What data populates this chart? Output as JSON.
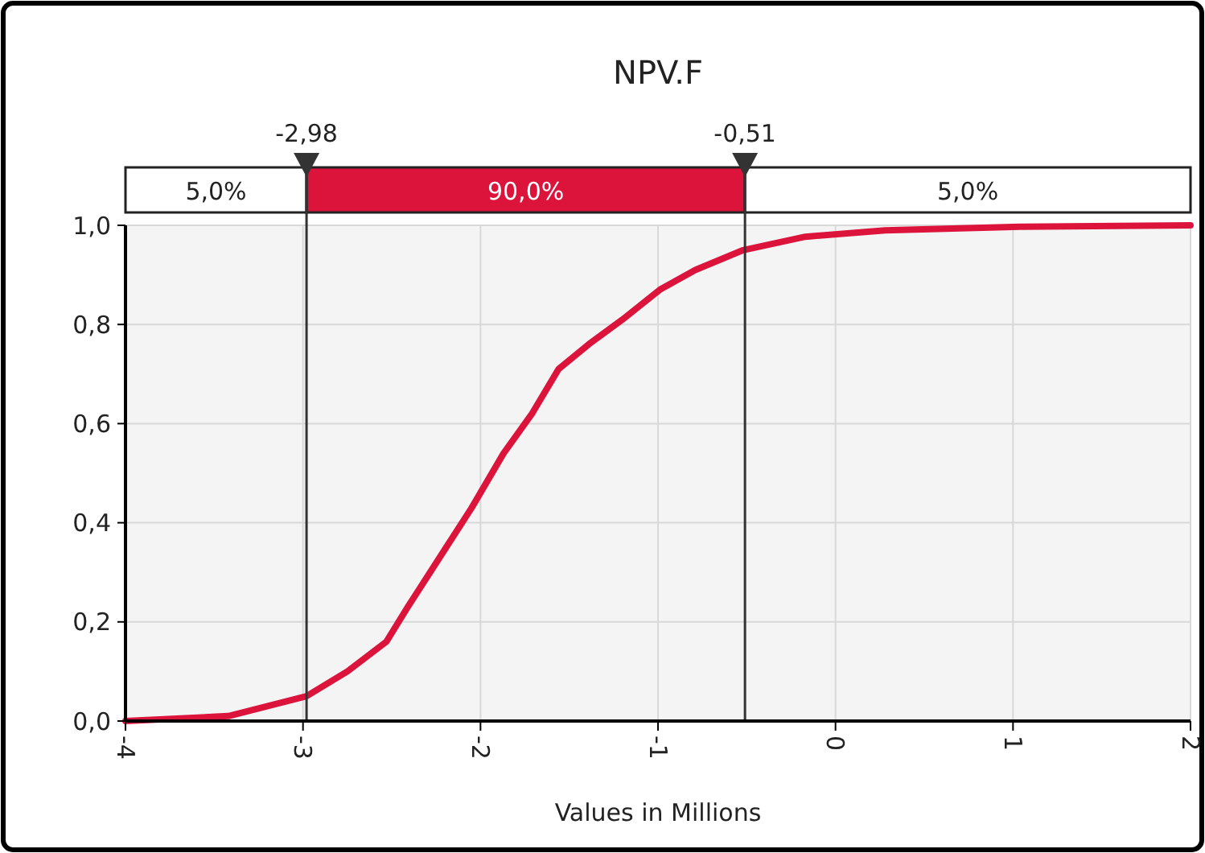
{
  "chart_data": {
    "type": "line",
    "title": "NPV.F",
    "xlabel": "Values in Millions",
    "xlim": [
      -4,
      2
    ],
    "xticks": [
      -4,
      -3,
      -2,
      -1,
      0,
      1,
      2
    ],
    "ylim": [
      0,
      1
    ],
    "yticks": [
      {
        "value": 0,
        "label": "0,0"
      },
      {
        "value": 0.2,
        "label": "0,2"
      },
      {
        "value": 0.4,
        "label": "0,4"
      },
      {
        "value": 0.6,
        "label": "0,6"
      },
      {
        "value": 0.8,
        "label": "0,8"
      },
      {
        "value": 1,
        "label": "1,0"
      }
    ],
    "grid": true,
    "marker": "none",
    "line_style": "solid",
    "series": [
      {
        "color": "#dc143c",
        "x": [
          -4,
          -3.42,
          -2.98,
          -2.75,
          -2.53,
          -2.41,
          -2.23,
          -2.05,
          -1.87,
          -1.71,
          -1.56,
          -1.39,
          -1.2,
          -0.99,
          -0.79,
          -0.52,
          -0.17,
          0.28,
          1.04,
          2
        ],
        "values": [
          0,
          0.01,
          0.05,
          0.1,
          0.16,
          0.23,
          0.33,
          0.43,
          0.54,
          0.62,
          0.71,
          0.76,
          0.81,
          0.87,
          0.91,
          0.95,
          0.977,
          0.99,
          0.997,
          1
        ]
      }
    ],
    "ref_lines": [
      {
        "axis": "x",
        "value": -2.98,
        "label": "-2,98",
        "color": "#333333"
      },
      {
        "axis": "x",
        "value": -0.51,
        "label": "-0,51",
        "color": "#333333"
      }
    ],
    "annotations": [
      "5,0%",
      "90,0%",
      "5,0%"
    ]
  }
}
